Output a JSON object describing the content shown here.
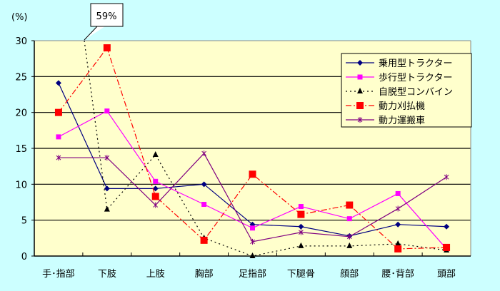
{
  "chart_data": {
    "type": "line",
    "ylabel": "(%)",
    "ylim": [
      0,
      30
    ],
    "yticks": [
      0,
      5,
      10,
      15,
      20,
      25,
      30
    ],
    "grid": true,
    "legend_position": "top-right",
    "categories": [
      "手･指部",
      "下肢",
      "上肢",
      "胸部",
      "足指部",
      "下腿骨",
      "顔部",
      "腰･背部",
      "頭部"
    ],
    "annotation": "59%",
    "series": [
      {
        "name": "乗用型トラクター",
        "color": "#000080",
        "marker": "diamond",
        "dash": "",
        "values": [
          24.1,
          9.4,
          9.4,
          10.0,
          4.4,
          4.1,
          2.8,
          4.4,
          4.1
        ]
      },
      {
        "name": "歩行型トラクター",
        "color": "#ff00ff",
        "marker": "square",
        "dash": "",
        "values": [
          16.6,
          20.2,
          10.4,
          7.2,
          3.9,
          6.9,
          5.2,
          8.7,
          1.0
        ]
      },
      {
        "name": "自脱型コンバイン",
        "color": "#000000",
        "marker": "triangle",
        "dash": "2,4",
        "values": [
          59,
          6.5,
          14.1,
          2.5,
          0,
          1.4,
          1.4,
          1.7,
          0.8
        ]
      },
      {
        "name": "動力刈払機",
        "color": "#ff0000",
        "marker": "bigsquare",
        "dash": "8,3,2,3",
        "values": [
          20.0,
          29.0,
          8.3,
          2.2,
          11.4,
          5.8,
          7.1,
          1.0,
          1.2
        ]
      },
      {
        "name": "動力運搬車",
        "color": "#800080",
        "marker": "star",
        "dash": "",
        "values": [
          13.7,
          13.7,
          7.1,
          14.3,
          2.0,
          3.3,
          2.7,
          6.6,
          11.0
        ]
      }
    ]
  }
}
